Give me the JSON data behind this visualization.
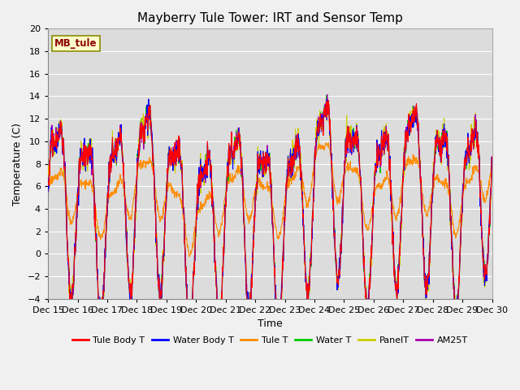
{
  "title": "Mayberry Tule Tower: IRT and Sensor Temp",
  "ylabel": "Temperature (C)",
  "xlabel": "Time",
  "ylim": [
    -4,
    20
  ],
  "yticks": [
    -4,
    -2,
    0,
    2,
    4,
    6,
    8,
    10,
    12,
    14,
    16,
    18,
    20
  ],
  "x_labels": [
    "Dec 15",
    "Dec 16",
    "Dec 17",
    "Dec 18",
    "Dec 19",
    "Dec 20",
    "Dec 21",
    "Dec 22",
    "Dec 23",
    "Dec 24",
    "Dec 25",
    "Dec 26",
    "Dec 27",
    "Dec 28",
    "Dec 29",
    "Dec 30"
  ],
  "watermark": "MB_tule",
  "series_colors": {
    "Tule Body T": "#ff0000",
    "Water Body T": "#0000ff",
    "Tule T": "#ff8c00",
    "Water T": "#00cc00",
    "PanelT": "#cccc00",
    "AM25T": "#aa00aa"
  },
  "legend_labels": [
    "Tule Body T",
    "Water Body T",
    "Tule T",
    "Water T",
    "PanelT",
    "AM25T"
  ],
  "background_color": "#dcdcdc",
  "fig_background": "#f0f0f0",
  "grid_color": "#ffffff",
  "title_fontsize": 11,
  "label_fontsize": 9,
  "tick_fontsize": 8
}
